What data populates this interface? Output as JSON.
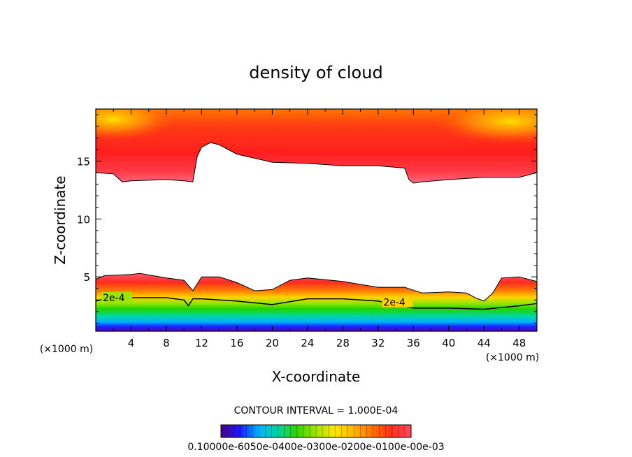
{
  "chart_data": {
    "type": "heatmap",
    "title": "density of cloud",
    "xlabel": "X-coordinate",
    "ylabel": "Z-coordinate",
    "x_unit_left": "(×1000 m)",
    "x_unit_right": "(×1000 m)",
    "xlim": [
      0,
      50
    ],
    "ylim": [
      0.3,
      19.5
    ],
    "x_ticks": [
      4,
      8,
      12,
      16,
      20,
      24,
      28,
      32,
      36,
      40,
      44,
      48
    ],
    "y_ticks": [
      5,
      10,
      15
    ],
    "contour_interval_text": "CONTOUR INTERVAL = 1.000E-04",
    "contour_label_1": "2e-4",
    "contour_label_2": "2e-4",
    "colorbar_labels_text": "0.10000e-6050e-0400e-0300e-0200e-0100e-00e-03",
    "colorbar_min": 0.0001,
    "colorbar_max": 0.003,
    "colormap": [
      "#4b0082",
      "#1a1aff",
      "#00b4ff",
      "#00d2a0",
      "#33d200",
      "#a0e600",
      "#ffe600",
      "#ffb400",
      "#ff7000",
      "#ff2e1e",
      "#ff4a5c"
    ],
    "upper_layer": {
      "description_values": "lower boundary height of upper cloud layer (km) vs x (km)",
      "x": [
        0,
        2,
        3,
        4,
        8,
        10,
        11,
        11.5,
        12,
        13,
        14,
        16,
        20,
        24,
        28,
        32,
        35,
        35.5,
        36,
        37,
        40,
        44,
        48,
        50
      ],
      "z": [
        14.0,
        13.9,
        13.2,
        13.3,
        13.4,
        13.3,
        13.2,
        15.4,
        16.2,
        16.6,
        16.4,
        15.6,
        14.9,
        14.8,
        14.6,
        14.6,
        14.4,
        13.4,
        13.1,
        13.2,
        13.4,
        13.6,
        13.6,
        14.0
      ]
    },
    "lower_layer": {
      "description_values": "upper boundary height of lower cloud layer (km) vs x (km)",
      "x": [
        0,
        1,
        4,
        5,
        8,
        10,
        11,
        12,
        14,
        16,
        18,
        20,
        22,
        24,
        28,
        32,
        35,
        37,
        40,
        42,
        43,
        44,
        45,
        46,
        48,
        50
      ],
      "z": [
        4.8,
        5.1,
        5.2,
        5.3,
        4.9,
        4.7,
        3.8,
        5.0,
        5.0,
        4.5,
        3.8,
        3.9,
        4.7,
        4.9,
        4.6,
        4.1,
        4.1,
        3.6,
        3.7,
        3.6,
        3.2,
        2.9,
        3.6,
        4.9,
        5.0,
        4.6
      ]
    },
    "contour_2e4": {
      "x": [
        0,
        2,
        4,
        8,
        10,
        10.5,
        11,
        12,
        16,
        20,
        24,
        28,
        32,
        36,
        40,
        44,
        48,
        50
      ],
      "z": [
        2.9,
        3.3,
        3.2,
        3.2,
        3.0,
        2.5,
        3.1,
        3.1,
        2.9,
        2.6,
        3.1,
        3.1,
        2.9,
        2.3,
        2.3,
        2.2,
        2.5,
        2.7
      ]
    }
  }
}
